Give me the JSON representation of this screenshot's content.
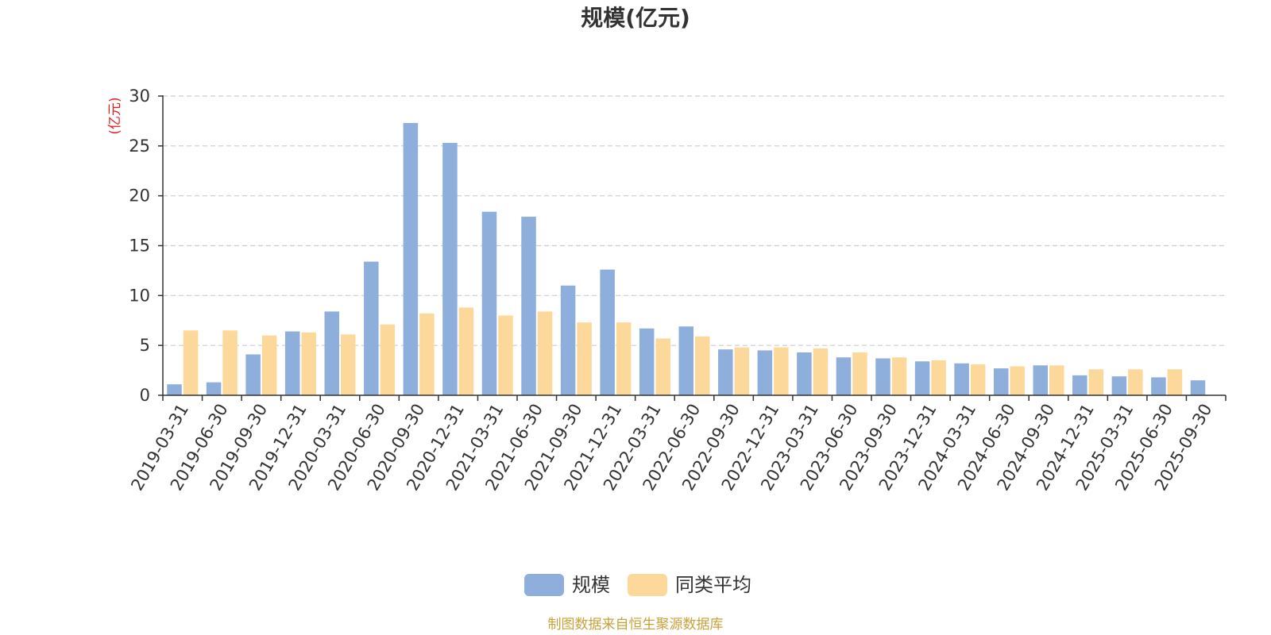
{
  "chart_data": {
    "type": "bar",
    "title": "规模(亿元)",
    "ylabel": "(亿元)",
    "ylim": [
      0,
      30
    ],
    "yticks": [
      0,
      5,
      10,
      15,
      20,
      25,
      30
    ],
    "grid": true,
    "legend_position": "bottom-center",
    "categories": [
      "2019-03-31",
      "2019-06-30",
      "2019-09-30",
      "2019-12-31",
      "2020-03-31",
      "2020-06-30",
      "2020-09-30",
      "2020-12-31",
      "2021-03-31",
      "2021-06-30",
      "2021-09-30",
      "2021-12-31",
      "2022-03-31",
      "2022-06-30",
      "2022-09-30",
      "2022-12-31",
      "2023-03-31",
      "2023-06-30",
      "2023-09-30",
      "2023-12-31",
      "2024-03-31",
      "2024-06-30",
      "2024-09-30",
      "2024-12-31",
      "2025-03-31",
      "2025-06-30",
      "2025-09-30"
    ],
    "series": [
      {
        "name": "规模",
        "color": "#8eaedb",
        "values": [
          1.1,
          1.3,
          4.1,
          6.4,
          8.4,
          13.4,
          27.3,
          25.3,
          18.4,
          17.9,
          11.0,
          12.6,
          6.7,
          6.9,
          4.6,
          4.5,
          4.3,
          3.8,
          3.7,
          3.4,
          3.2,
          2.7,
          3.0,
          2.0,
          1.9,
          1.8,
          1.5
        ]
      },
      {
        "name": "同类平均",
        "color": "#fdd89b",
        "values": [
          6.5,
          6.5,
          6.0,
          6.3,
          6.1,
          7.1,
          8.2,
          8.8,
          8.0,
          8.4,
          7.3,
          7.3,
          5.7,
          5.9,
          4.8,
          4.8,
          4.7,
          4.3,
          3.8,
          3.5,
          3.1,
          2.9,
          3.0,
          2.6,
          2.6,
          2.6,
          null
        ]
      }
    ]
  },
  "source": {
    "text": "制图数据来自恒生聚源数据库",
    "color": "#c9a13b"
  },
  "colors": {
    "unit_label": "#e02020",
    "axis": "#333333",
    "grid": "#cccccc"
  }
}
